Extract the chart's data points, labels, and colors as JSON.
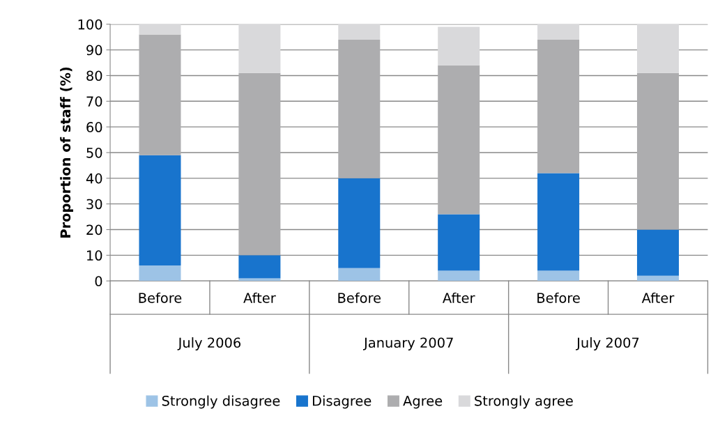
{
  "chart_data": {
    "type": "bar",
    "stacked": true,
    "ylabel": "Proportion of staff (%)",
    "categories": [
      "Before",
      "After",
      "Before",
      "After",
      "Before",
      "After"
    ],
    "annotations": [
      "July 2006",
      "January 2007",
      "July 2007"
    ],
    "series": [
      {
        "name": "Strongly disagree",
        "color": "#9dc3e6",
        "values": [
          6,
          1,
          5,
          4,
          4,
          2
        ]
      },
      {
        "name": "Disagree",
        "color": "#1874cd",
        "values": [
          43,
          9,
          35,
          22,
          38,
          18
        ]
      },
      {
        "name": "Agree",
        "color": "#adadaf",
        "values": [
          47,
          71,
          54,
          58,
          52,
          61
        ]
      },
      {
        "name": "Strongly agree",
        "color": "#d9d9db",
        "values": [
          4,
          19,
          6,
          15,
          6,
          19
        ]
      }
    ],
    "ylim": [
      0,
      100
    ],
    "yticks": [
      0,
      10,
      20,
      30,
      40,
      50,
      60,
      70,
      80,
      90,
      100
    ],
    "grid": "y",
    "legend": "bottom"
  }
}
